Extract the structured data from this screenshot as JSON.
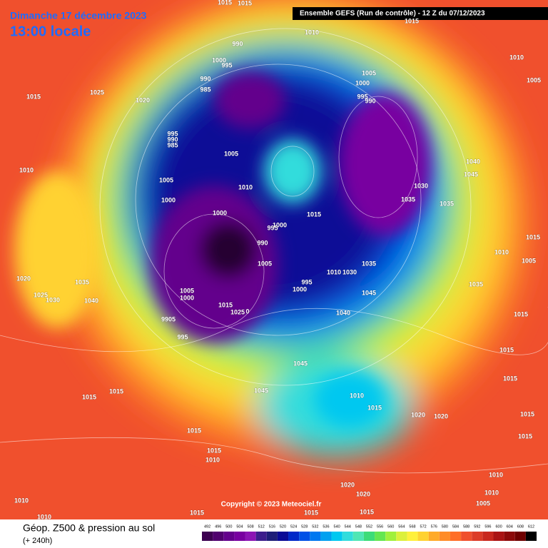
{
  "header": {
    "date": "Dimanche 17 décembre 2023",
    "time": "13:00 locale",
    "run": "Ensemble GEFS  (Run de contrôle)  -  12 Z du 07/12/2023"
  },
  "copyright": "Copyright © 2023 Meteociel.fr",
  "isobar_labels": [
    1015,
    1015,
    1015,
    1010,
    1010,
    990,
    1000,
    995,
    1005,
    1005,
    990,
    985,
    1000,
    995,
    990,
    1015,
    1025,
    1020,
    995,
    990,
    985,
    1005,
    1040,
    1010,
    1045,
    1005,
    1010,
    1030,
    1000,
    1035,
    1035,
    1000,
    1015,
    995,
    1000,
    990,
    1015,
    1010,
    1005,
    1005,
    1035,
    1010,
    1030,
    1020,
    1035,
    995,
    1035,
    1005,
    1000,
    1000,
    1045,
    1025,
    1030,
    1040,
    1015,
    1025,
    0,
    1015,
    1040,
    9905,
    995,
    1015,
    1045,
    1015,
    1015,
    1015,
    1045,
    1010,
    1015,
    1020,
    1020,
    1015,
    1015,
    1015,
    1010,
    1015,
    1010,
    1010,
    1005,
    1010,
    1020,
    1020,
    1010,
    1015,
    1015,
    1015
  ],
  "legend": {
    "title": "Géop. Z500 & pression au sol",
    "subtitle": "(+ 240h)",
    "values": [
      492,
      496,
      500,
      504,
      508,
      512,
      516,
      520,
      524,
      528,
      532,
      536,
      540,
      544,
      548,
      552,
      556,
      560,
      564,
      568,
      572,
      576,
      580,
      584,
      588,
      592,
      596,
      600,
      604,
      608,
      612
    ],
    "colors": [
      "#3c0050",
      "#50006e",
      "#64008c",
      "#7800a0",
      "#8c14b4",
      "#3c1e8c",
      "#1e1e78",
      "#0a0a96",
      "#0028c8",
      "#0050e6",
      "#0078f0",
      "#00a0f0",
      "#00c8f0",
      "#32dcdc",
      "#50e6b4",
      "#3cdc78",
      "#64e650",
      "#a0f03c",
      "#dcf03c",
      "#fff03c",
      "#ffd232",
      "#ffaa28",
      "#ff8c28",
      "#ff6e28",
      "#f0502d",
      "#dc3c28",
      "#c8281e",
      "#aa1414",
      "#8c0a0a",
      "#6e0000",
      "#000000"
    ]
  }
}
